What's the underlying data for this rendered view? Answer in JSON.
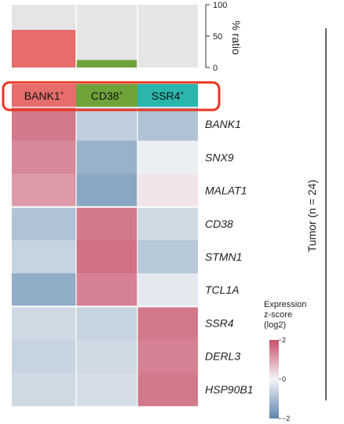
{
  "chart_data": {
    "type": "heatmap",
    "clusters": [
      {
        "label": "BANK1",
        "sup": "+",
        "color": "#e76d6d"
      },
      {
        "label": "CD38",
        "sup": "+",
        "color": "#6fa33a"
      },
      {
        "label": "SSR4",
        "sup": "+",
        "color": "#2ab6ac"
      }
    ],
    "ratio_bar": {
      "values": [
        60,
        12,
        0
      ],
      "ylim": [
        0,
        100
      ],
      "ticks": [
        0,
        50,
        100
      ],
      "ylabel": "% ratio"
    },
    "genes": [
      "BANK1",
      "SNX9",
      "MALAT1",
      "CD38",
      "STMN1",
      "TCL1A",
      "SSR4",
      "DERL3",
      "HSP90B1"
    ],
    "zscores": [
      [
        1.5,
        -0.7,
        -0.9
      ],
      [
        1.3,
        -1.2,
        -0.1
      ],
      [
        1.1,
        -1.4,
        0.2
      ],
      [
        -0.9,
        1.5,
        -0.5
      ],
      [
        -0.6,
        1.6,
        -0.8
      ],
      [
        -1.3,
        1.4,
        -0.2
      ],
      [
        -0.5,
        -0.6,
        1.5
      ],
      [
        -0.6,
        -0.5,
        1.4
      ],
      [
        -0.5,
        -0.4,
        1.5
      ]
    ],
    "group_sizes": [
      3,
      3,
      3
    ],
    "side_label": "Tumor (n = 24)",
    "legend": {
      "title_lines": [
        "Expression",
        "z-score",
        "(log2)"
      ],
      "ticks": [
        2,
        0,
        -2
      ],
      "range": [
        -2,
        2
      ],
      "colors": {
        "low": "#5b86ad",
        "mid": "#f4f4f6",
        "high": "#c85069"
      }
    },
    "highlight_color": "#e8351f",
    "bar_background": "#e5e5e5"
  }
}
